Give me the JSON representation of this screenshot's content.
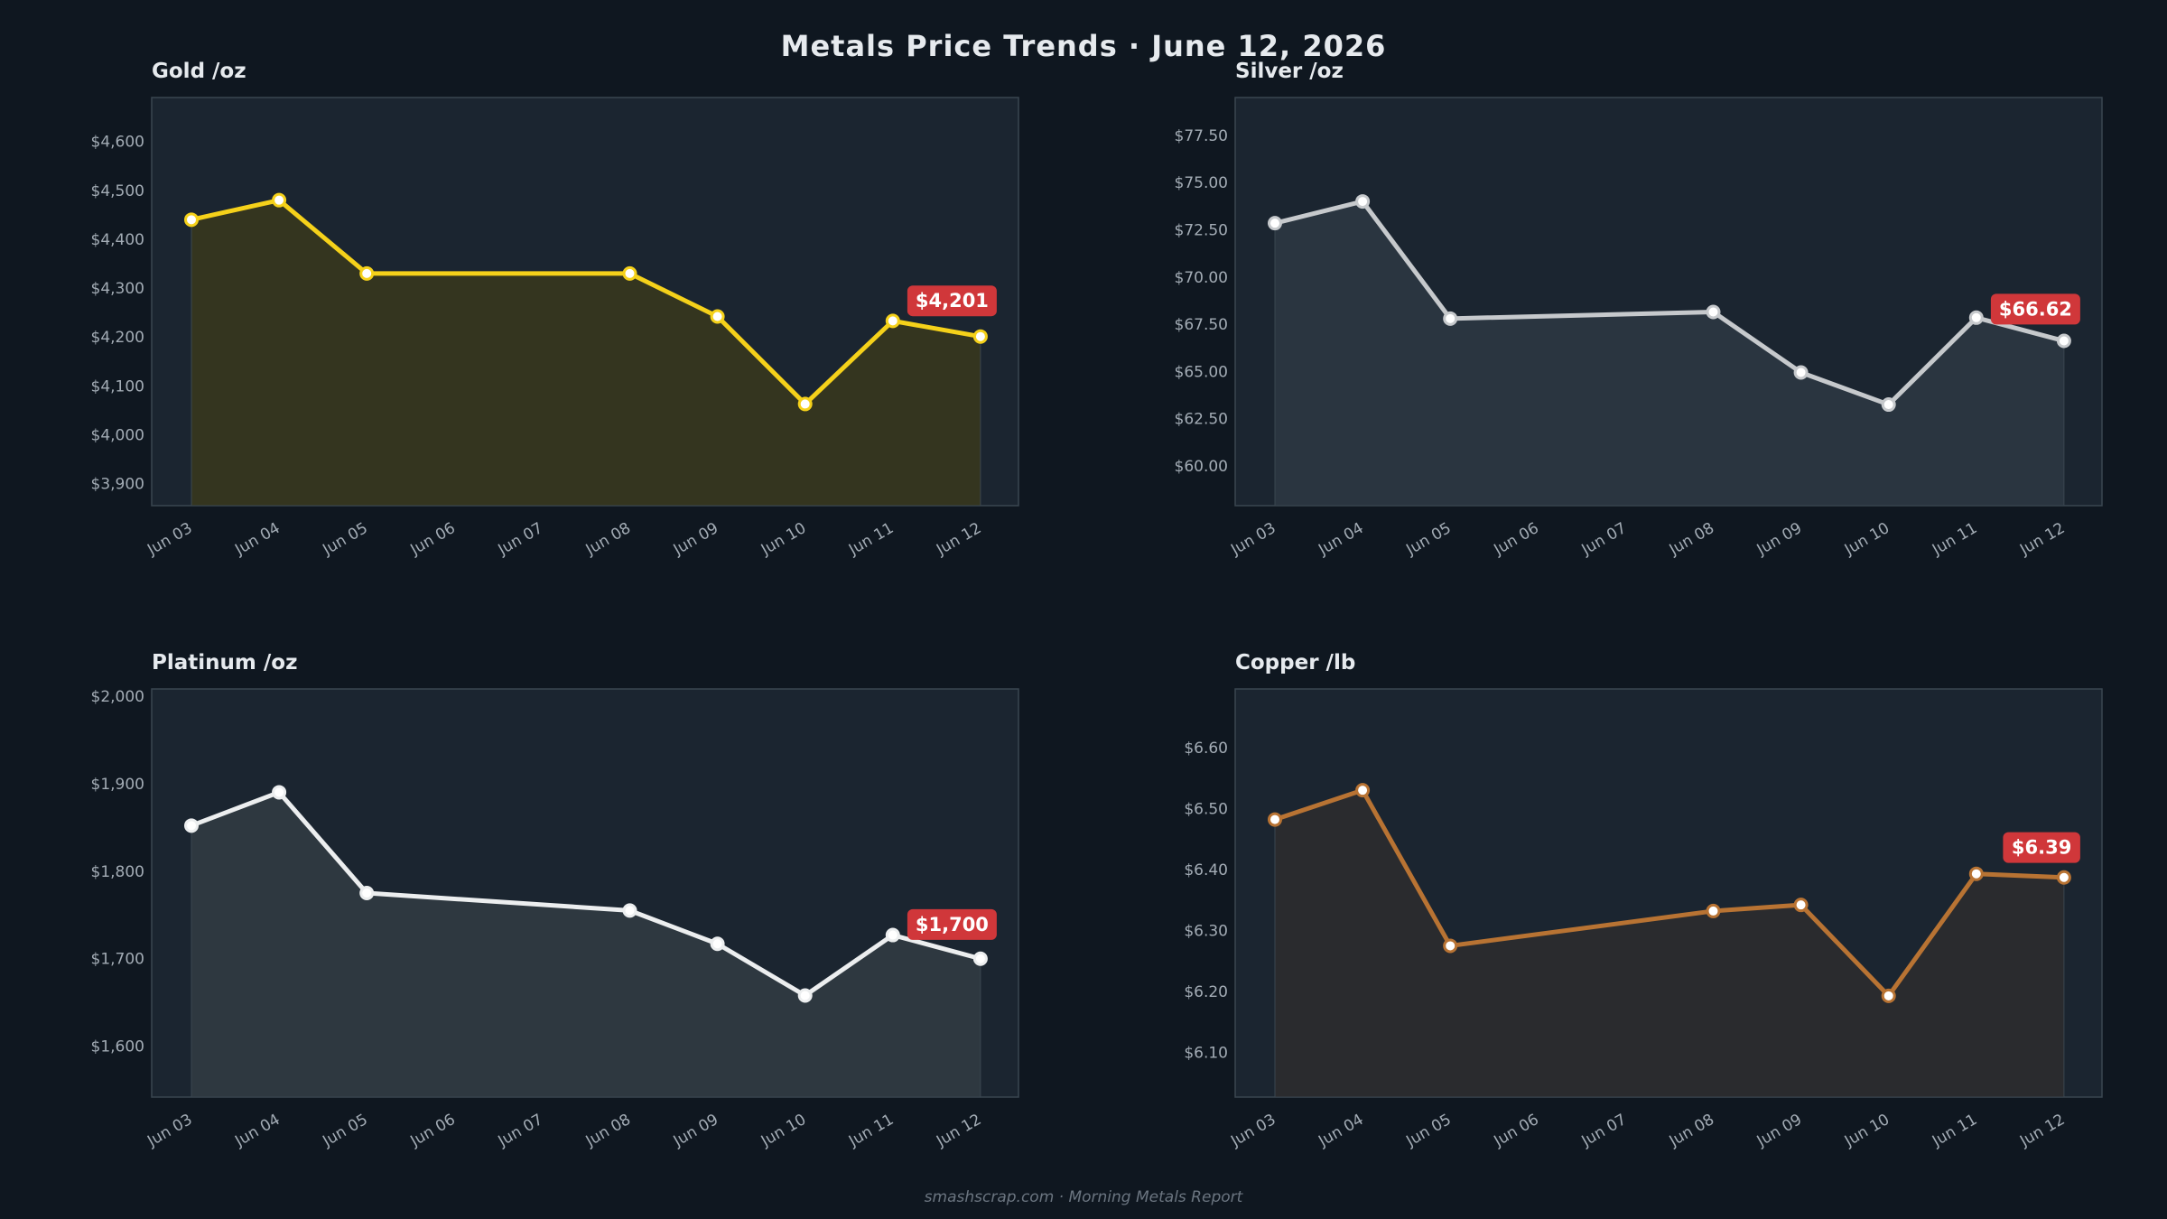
{
  "title": "Metals Price Trends  ·  June 12, 2026",
  "footer": "smashscrap.com  ·  Morning Metals Report",
  "chart_data": [
    {
      "type": "area",
      "title": "Gold  /oz",
      "color": "#f5d11a",
      "fill": "#34351f",
      "x": [
        "Jun 03",
        "Jun 04",
        "Jun 05",
        "Jun 06",
        "Jun 07",
        "Jun 08",
        "Jun 09",
        "Jun 10",
        "Jun 11",
        "Jun 12"
      ],
      "points": [
        {
          "x": "Jun 03",
          "y": 4440
        },
        {
          "x": "Jun 04",
          "y": 4480
        },
        {
          "x": "Jun 05",
          "y": 4330
        },
        {
          "x": "Jun 08",
          "y": 4330
        },
        {
          "x": "Jun 09",
          "y": 4242
        },
        {
          "x": "Jun 10",
          "y": 4063
        },
        {
          "x": "Jun 11",
          "y": 4233
        },
        {
          "x": "Jun 12",
          "y": 4201
        }
      ],
      "yticks": [
        3900,
        4000,
        4100,
        4200,
        4300,
        4400,
        4500,
        4600
      ],
      "ytick_labels": [
        "$3,900",
        "$4,000",
        "$4,100",
        "$4,200",
        "$4,300",
        "$4,400",
        "$4,500",
        "$4,600"
      ],
      "ylim": [
        3855,
        4690
      ],
      "callout": "$4,201",
      "callout_y": 4274
    },
    {
      "type": "area",
      "title": "Silver  /oz",
      "color": "#c6c9cc",
      "fill": "#2a3540",
      "x": [
        "Jun 03",
        "Jun 04",
        "Jun 05",
        "Jun 06",
        "Jun 07",
        "Jun 08",
        "Jun 09",
        "Jun 10",
        "Jun 11",
        "Jun 12"
      ],
      "points": [
        {
          "x": "Jun 03",
          "y": 72.85
        },
        {
          "x": "Jun 04",
          "y": 74.0
        },
        {
          "x": "Jun 05",
          "y": 67.8
        },
        {
          "x": "Jun 08",
          "y": 68.15
        },
        {
          "x": "Jun 09",
          "y": 64.95
        },
        {
          "x": "Jun 10",
          "y": 63.25
        },
        {
          "x": "Jun 11",
          "y": 67.85
        },
        {
          "x": "Jun 12",
          "y": 66.62
        }
      ],
      "yticks": [
        60,
        62.5,
        65,
        67.5,
        70,
        72.5,
        75,
        77.5
      ],
      "ytick_labels": [
        "$60.00",
        "$62.50",
        "$65.00",
        "$67.50",
        "$70.00",
        "$72.50",
        "$75.00",
        "$77.50"
      ],
      "ylim": [
        57.9,
        79.5
      ],
      "callout": "$66.62",
      "callout_y": 68.3
    },
    {
      "type": "area",
      "title": "Platinum  /oz",
      "color": "#eceeef",
      "fill": "#2e3840",
      "x": [
        "Jun 03",
        "Jun 04",
        "Jun 05",
        "Jun 06",
        "Jun 07",
        "Jun 08",
        "Jun 09",
        "Jun 10",
        "Jun 11",
        "Jun 12"
      ],
      "points": [
        {
          "x": "Jun 03",
          "y": 1852
        },
        {
          "x": "Jun 04",
          "y": 1890
        },
        {
          "x": "Jun 05",
          "y": 1775
        },
        {
          "x": "Jun 08",
          "y": 1755
        },
        {
          "x": "Jun 09",
          "y": 1717
        },
        {
          "x": "Jun 10",
          "y": 1658
        },
        {
          "x": "Jun 11",
          "y": 1727
        },
        {
          "x": "Jun 12",
          "y": 1700
        }
      ],
      "yticks": [
        1600,
        1700,
        1800,
        1900,
        2000
      ],
      "ytick_labels": [
        "$1,600",
        "$1,700",
        "$1,800",
        "$1,900",
        "$2,000"
      ],
      "ylim": [
        1542,
        2008
      ],
      "callout": "$1,700",
      "callout_y": 1739
    },
    {
      "type": "area",
      "title": "Copper  /lb",
      "color": "#b87333",
      "fill": "#2a2b2e",
      "x": [
        "Jun 03",
        "Jun 04",
        "Jun 05",
        "Jun 06",
        "Jun 07",
        "Jun 08",
        "Jun 09",
        "Jun 10",
        "Jun 11",
        "Jun 12"
      ],
      "points": [
        {
          "x": "Jun 03",
          "y": 6.482
        },
        {
          "x": "Jun 04",
          "y": 6.53
        },
        {
          "x": "Jun 05",
          "y": 6.275
        },
        {
          "x": "Jun 08",
          "y": 6.332
        },
        {
          "x": "Jun 09",
          "y": 6.342
        },
        {
          "x": "Jun 10",
          "y": 6.193
        },
        {
          "x": "Jun 11",
          "y": 6.393
        },
        {
          "x": "Jun 12",
          "y": 6.387
        }
      ],
      "yticks": [
        6.1,
        6.2,
        6.3,
        6.4,
        6.5,
        6.6
      ],
      "ytick_labels": [
        "$6.10",
        "$6.20",
        "$6.30",
        "$6.40",
        "$6.50",
        "$6.60"
      ],
      "ylim": [
        6.027,
        6.696
      ],
      "callout": "$6.39",
      "callout_y": 6.436
    }
  ],
  "callout_color": "#d0373a"
}
